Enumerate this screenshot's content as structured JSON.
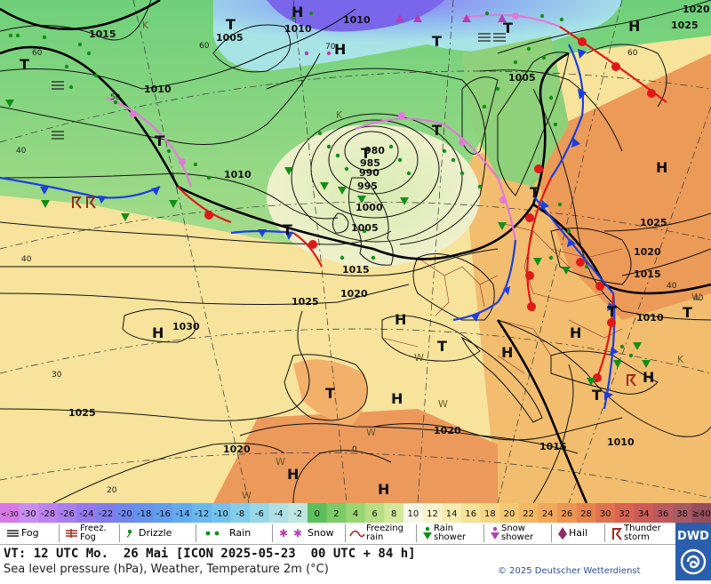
{
  "map": {
    "pressure_labels": [
      "1015",
      "1010",
      "1005",
      "1010",
      "1010",
      "1015",
      "1020",
      "1025",
      "1030",
      "1025",
      "1020",
      "1020",
      "1015",
      "1010",
      "1005",
      "1000",
      "995",
      "990",
      "985",
      "980",
      "1010",
      "1025",
      "1015",
      "1010",
      "1005",
      "1020",
      "1025",
      "1020"
    ],
    "temp_labels": [
      "60",
      "60",
      "50",
      "40",
      "40",
      "30",
      "20",
      "0",
      "70",
      "60",
      "40",
      "40"
    ],
    "highs": [
      "H",
      "H",
      "H",
      "H",
      "H",
      "H",
      "H",
      "H",
      "H",
      "H",
      "H"
    ],
    "lows": [
      "T",
      "T",
      "T",
      "T",
      "T",
      "T",
      "T",
      "T",
      "T",
      "T",
      "T",
      "T",
      "T",
      "T"
    ],
    "k_marks": [
      "K",
      "K",
      "K"
    ],
    "w_marks": [
      "W",
      "W",
      "W",
      "W",
      "W",
      "W"
    ]
  },
  "color_scale": {
    "labels": [
      "<-30",
      "-30",
      "-28",
      "-26",
      "-24",
      "-22",
      "-20",
      "-18",
      "-16",
      "-14",
      "-12",
      "-10",
      "-8",
      "-6",
      "-4",
      "-2",
      "0",
      "2",
      "4",
      "6",
      "8",
      "10",
      "12",
      "14",
      "16",
      "18",
      "20",
      "22",
      "24",
      "26",
      "28",
      "30",
      "32",
      "34",
      "36",
      "38",
      "≥40"
    ],
    "colors": [
      "#d87ae6",
      "#c98ef0",
      "#bb82f0",
      "#a97ef0",
      "#9478ee",
      "#7f7cec",
      "#6f86ec",
      "#6592ee",
      "#629eef",
      "#63aaf0",
      "#6ab7ee",
      "#74c2ec",
      "#84cdea",
      "#97d7e8",
      "#aee0e6",
      "#c0e6e0",
      "#5cbf5c",
      "#7ccb66",
      "#9ad574",
      "#b7de84",
      "#d2e89a",
      "#f8f8e8",
      "#faf4cc",
      "#f8ecb0",
      "#f7e29a",
      "#f6d686",
      "#f4c874",
      "#f2b864",
      "#f0a85a",
      "#ec9654",
      "#e6844e",
      "#e07250",
      "#d86452",
      "#cc5c58",
      "#bc5a5e",
      "#a85a64",
      "#984e5c"
    ]
  },
  "legend": {
    "fog": "Fog",
    "freezing_fog": "Freez. Fog",
    "drizzle": "Drizzle",
    "rain": "Rain",
    "snow": "Snow",
    "freezing_rain": "Freezing rain",
    "rain_shower": "Rain shower",
    "snow_shower": "Snow shower",
    "hail": "Hail",
    "thunderstorm": "Thunder storm"
  },
  "footer": {
    "valid_time": "VT: 12 UTC Mo.  26 Mai [ICON 2025-05-23  00 UTC + 84 h]",
    "description": "Sea level pressure (hPa), Weather, Temperature 2m (°C)",
    "copyright": "© 2025 Deutscher Wetterdienst",
    "logo": "DWD"
  }
}
